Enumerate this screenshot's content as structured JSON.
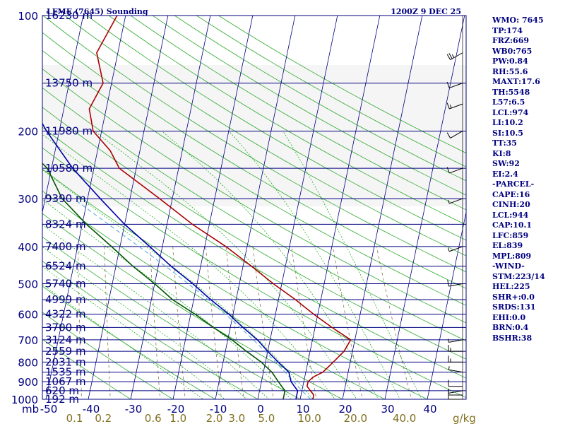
{
  "header": {
    "title": "LFME (7645) Sounding",
    "datetime": "1200Z  9 DEC 25"
  },
  "colors": {
    "frame": "#000080",
    "isobar": "#000080",
    "isotherm": "#000080",
    "dry_adiabat": "#2faa2f",
    "moist_adiabat": "#00aa00",
    "mixing_ratio": "#8a7a55",
    "parcel": "#4aa8d8",
    "temperature": "#aa0000",
    "dewpoint": "#005500",
    "wetbulb": "#0000aa",
    "wind_barbs": "#000000",
    "axis_labels": "#000080",
    "mixing_labels": "#807020",
    "index_text": "#000080"
  },
  "chart_data": {
    "type": "line",
    "title": "LFME (7645) Sounding",
    "subtitle": "1200Z  9 DEC 25",
    "pressure_unit": "mb",
    "mixing_ratio_unit": "g/kg",
    "pressure_labels": [
      "100",
      "200",
      "300",
      "400",
      "500",
      "600",
      "700",
      "800",
      "900",
      "1000"
    ],
    "temperature_labels": [
      "-50",
      "-40",
      "-30",
      "-20",
      "-10",
      "0",
      "10",
      "20",
      "30",
      "40"
    ],
    "mixing_ratio_labels": [
      "0.1",
      "0.2",
      "0.6",
      "1.0",
      "2.0",
      "3.0",
      "5.0",
      "10.0",
      "20.0",
      "40.0"
    ],
    "mixing_ratio_values": [
      0.1,
      0.2,
      0.6,
      1.0,
      2.0,
      3.0,
      5.0,
      10.0,
      20.0,
      40.0
    ],
    "height_labels": [
      {
        "p": 100,
        "label": "16230 m"
      },
      {
        "p": 150,
        "label": "13750 m"
      },
      {
        "p": 200,
        "label": "11980 m"
      },
      {
        "p": 250,
        "label": "10580 m"
      },
      {
        "p": 300,
        "label": "9390 m"
      },
      {
        "p": 350,
        "label": "8324 m"
      },
      {
        "p": 400,
        "label": "7400 m"
      },
      {
        "p": 450,
        "label": "6524 m"
      },
      {
        "p": 500,
        "label": "5740 m"
      },
      {
        "p": 550,
        "label": "4999 m"
      },
      {
        "p": 600,
        "label": "4322 m"
      },
      {
        "p": 650,
        "label": "3700 m"
      },
      {
        "p": 700,
        "label": "3124 m"
      },
      {
        "p": 750,
        "label": "2559 m"
      },
      {
        "p": 800,
        "label": "2031 m"
      },
      {
        "p": 850,
        "label": "1535 m"
      },
      {
        "p": 900,
        "label": "1067 m"
      },
      {
        "p": 950,
        "label": "620 m"
      },
      {
        "p": 1000,
        "label": "192 m"
      }
    ],
    "isobars": [
      100,
      150,
      200,
      250,
      300,
      350,
      400,
      450,
      500,
      550,
      600,
      650,
      700,
      750,
      800,
      850,
      900,
      950,
      1000
    ],
    "pressure_range": [
      100,
      1000
    ],
    "temperature_range_at_surface": [
      -50,
      50
    ],
    "series": [
      {
        "name": "temperature",
        "points": [
          [
            1010,
            12
          ],
          [
            1000,
            13
          ],
          [
            975,
            13
          ],
          [
            950,
            12
          ],
          [
            925,
            11
          ],
          [
            900,
            11
          ],
          [
            875,
            12
          ],
          [
            850,
            14
          ],
          [
            800,
            16
          ],
          [
            750,
            18
          ],
          [
            700,
            19
          ],
          [
            650,
            14
          ],
          [
            600,
            9
          ],
          [
            550,
            4
          ],
          [
            500,
            -2
          ],
          [
            450,
            -8
          ],
          [
            400,
            -15
          ],
          [
            350,
            -24
          ],
          [
            300,
            -33
          ],
          [
            250,
            -44
          ],
          [
            225,
            -47
          ],
          [
            200,
            -52
          ],
          [
            175,
            -54
          ],
          [
            150,
            -52
          ],
          [
            125,
            -55
          ],
          [
            100,
            -52
          ]
        ]
      },
      {
        "name": "dewpoint",
        "points": [
          [
            1010,
            5
          ],
          [
            1000,
            6
          ],
          [
            975,
            6
          ],
          [
            950,
            6
          ],
          [
            925,
            5
          ],
          [
            900,
            4
          ],
          [
            850,
            2
          ],
          [
            800,
            -1
          ],
          [
            750,
            -5
          ],
          [
            700,
            -9
          ],
          [
            650,
            -14
          ],
          [
            600,
            -19
          ],
          [
            550,
            -25
          ],
          [
            500,
            -30
          ],
          [
            450,
            -36
          ],
          [
            400,
            -42
          ],
          [
            350,
            -49
          ],
          [
            300,
            -56
          ],
          [
            250,
            -61
          ],
          [
            225,
            -66
          ],
          [
            200,
            -70
          ],
          [
            175,
            -69
          ],
          [
            150,
            -76
          ],
          [
            125,
            -76
          ],
          [
            100,
            -78
          ]
        ]
      },
      {
        "name": "wetbulb",
        "points": [
          [
            1010,
            9
          ],
          [
            1000,
            9
          ],
          [
            975,
            9
          ],
          [
            950,
            9
          ],
          [
            925,
            8
          ],
          [
            900,
            7
          ],
          [
            850,
            6
          ],
          [
            800,
            3
          ],
          [
            750,
            0
          ],
          [
            700,
            -3
          ],
          [
            650,
            -7
          ],
          [
            600,
            -11
          ],
          [
            550,
            -16
          ],
          [
            500,
            -21
          ],
          [
            450,
            -27
          ],
          [
            400,
            -33
          ],
          [
            350,
            -40
          ],
          [
            300,
            -47
          ],
          [
            250,
            -55
          ],
          [
            200,
            -63
          ],
          [
            175,
            -67
          ],
          [
            150,
            -71
          ],
          [
            125,
            -77
          ],
          [
            100,
            -83
          ]
        ]
      }
    ],
    "winds": [
      {
        "p": 1000,
        "dir": 270,
        "spd": 10
      },
      {
        "p": 975,
        "dir": 270,
        "spd": 10
      },
      {
        "p": 950,
        "dir": 260,
        "spd": 5
      },
      {
        "p": 925,
        "dir": 270,
        "spd": 10
      },
      {
        "p": 850,
        "dir": 280,
        "spd": 5
      },
      {
        "p": 800,
        "dir": 270,
        "spd": 15
      },
      {
        "p": 750,
        "dir": 270,
        "spd": 15
      },
      {
        "p": 700,
        "dir": 260,
        "spd": 5
      },
      {
        "p": 500,
        "dir": 260,
        "spd": 10
      },
      {
        "p": 400,
        "dir": 250,
        "spd": 5
      },
      {
        "p": 300,
        "dir": 250,
        "spd": 5
      },
      {
        "p": 250,
        "dir": 250,
        "spd": 10
      },
      {
        "p": 200,
        "dir": 240,
        "spd": 10
      },
      {
        "p": 170,
        "dir": 250,
        "spd": 15
      },
      {
        "p": 150,
        "dir": 250,
        "spd": 10
      },
      {
        "p": 125,
        "dir": 240,
        "spd": 25
      }
    ]
  },
  "indices": [
    "WMO: 7645",
    "TP:174",
    "FRZ:669",
    "WB0:765",
    "PW:0.84",
    "RH:55.6",
    "MAXT:17.6",
    "TH:5548",
    "L57:6.5",
    "LCL:974",
    "LI:10.2",
    "SI:10.5",
    "TT:35",
    "KI:8",
    "SW:92",
    "EI:2.4",
    "-PARCEL-",
    "CAPE:16",
    "CINH:20",
    "LCL:944",
    "CAP:10.1",
    "LFC:859",
    "EL:839",
    "MPL:809",
    "-WIND-",
    "STM:223/14",
    "HEL:225",
    "SHR+:0.0",
    "SRDS:131",
    "EHI:0.0",
    "BRN:0.4",
    "BSHR:38"
  ]
}
